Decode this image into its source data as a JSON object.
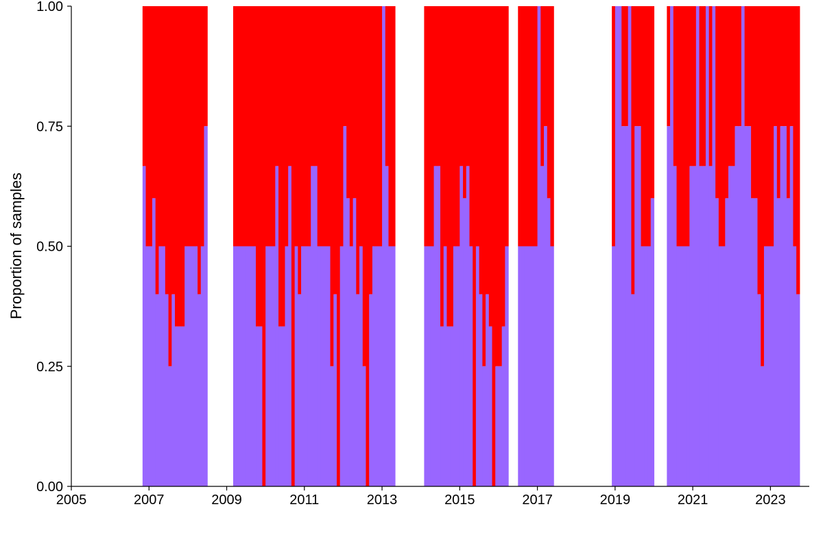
{
  "chart_data": {
    "type": "bar",
    "stacked": true,
    "title": "",
    "xlabel": "",
    "ylabel": "Proportion of samples",
    "xlim": [
      2005,
      2024
    ],
    "ylim": [
      0,
      1
    ],
    "xticks": [
      "2005",
      "2007",
      "2009",
      "2011",
      "2013",
      "2015",
      "2017",
      "2019",
      "2021",
      "2023"
    ],
    "yticks": [
      "0.00",
      "0.25",
      "0.50",
      "0.75",
      "1.00"
    ],
    "grid": false,
    "legend": "none",
    "x_step": 0.0833,
    "series": [
      {
        "color": "#9966FF",
        "layer": "bottom"
      },
      {
        "color": "#FF0000",
        "layer": "top"
      }
    ],
    "bars": [
      [
        2006.875,
        0.667
      ],
      [
        2006.958,
        0.5
      ],
      [
        2007.042,
        0.5
      ],
      [
        2007.125,
        0.6
      ],
      [
        2007.208,
        0.4
      ],
      [
        2007.292,
        0.5
      ],
      [
        2007.375,
        0.5
      ],
      [
        2007.458,
        0.4
      ],
      [
        2007.542,
        0.25
      ],
      [
        2007.625,
        0.4
      ],
      [
        2007.708,
        0.333
      ],
      [
        2007.792,
        0.333
      ],
      [
        2007.875,
        0.333
      ],
      [
        2007.958,
        0.5
      ],
      [
        2008.042,
        0.5
      ],
      [
        2008.125,
        0.5
      ],
      [
        2008.208,
        0.5
      ],
      [
        2008.292,
        0.4
      ],
      [
        2008.375,
        0.5
      ],
      [
        2008.458,
        0.75
      ],
      [
        2009.208,
        0.5
      ],
      [
        2009.292,
        0.5
      ],
      [
        2009.375,
        0.5
      ],
      [
        2009.458,
        0.5
      ],
      [
        2009.542,
        0.5
      ],
      [
        2009.625,
        0.5
      ],
      [
        2009.708,
        0.5
      ],
      [
        2009.792,
        0.333
      ],
      [
        2009.875,
        0.333
      ],
      [
        2009.958,
        0.0
      ],
      [
        2010.042,
        0.5
      ],
      [
        2010.125,
        0.5
      ],
      [
        2010.208,
        0.5
      ],
      [
        2010.292,
        0.667
      ],
      [
        2010.375,
        0.333
      ],
      [
        2010.458,
        0.333
      ],
      [
        2010.542,
        0.5
      ],
      [
        2010.625,
        0.667
      ],
      [
        2010.708,
        0.0
      ],
      [
        2010.792,
        0.5
      ],
      [
        2010.875,
        0.4
      ],
      [
        2010.958,
        0.5
      ],
      [
        2011.042,
        0.5
      ],
      [
        2011.125,
        0.5
      ],
      [
        2011.208,
        0.667
      ],
      [
        2011.292,
        0.667
      ],
      [
        2011.375,
        0.5
      ],
      [
        2011.458,
        0.5
      ],
      [
        2011.542,
        0.5
      ],
      [
        2011.625,
        0.5
      ],
      [
        2011.708,
        0.25
      ],
      [
        2011.792,
        0.4
      ],
      [
        2011.875,
        0.0
      ],
      [
        2011.958,
        0.5
      ],
      [
        2012.042,
        0.75
      ],
      [
        2012.125,
        0.6
      ],
      [
        2012.208,
        0.5
      ],
      [
        2012.292,
        0.6
      ],
      [
        2012.375,
        0.4
      ],
      [
        2012.458,
        0.5
      ],
      [
        2012.542,
        0.25
      ],
      [
        2012.625,
        0.0
      ],
      [
        2012.708,
        0.4
      ],
      [
        2012.792,
        0.5
      ],
      [
        2012.875,
        0.5
      ],
      [
        2012.958,
        0.5
      ],
      [
        2013.042,
        1.0
      ],
      [
        2013.125,
        0.667
      ],
      [
        2013.208,
        0.5
      ],
      [
        2013.292,
        0.5
      ],
      [
        2014.125,
        0.5
      ],
      [
        2014.208,
        0.5
      ],
      [
        2014.292,
        0.5
      ],
      [
        2014.375,
        0.667
      ],
      [
        2014.458,
        0.667
      ],
      [
        2014.542,
        0.333
      ],
      [
        2014.625,
        0.5
      ],
      [
        2014.708,
        0.333
      ],
      [
        2014.792,
        0.333
      ],
      [
        2014.875,
        0.5
      ],
      [
        2014.958,
        0.5
      ],
      [
        2015.042,
        0.667
      ],
      [
        2015.125,
        0.6
      ],
      [
        2015.208,
        0.667
      ],
      [
        2015.292,
        0.5
      ],
      [
        2015.375,
        0.0
      ],
      [
        2015.458,
        0.5
      ],
      [
        2015.542,
        0.4
      ],
      [
        2015.625,
        0.25
      ],
      [
        2015.708,
        0.4
      ],
      [
        2015.792,
        0.333
      ],
      [
        2015.875,
        0.0
      ],
      [
        2015.958,
        0.25
      ],
      [
        2016.042,
        0.25
      ],
      [
        2016.125,
        0.333
      ],
      [
        2016.208,
        0.5
      ],
      [
        2016.542,
        0.5
      ],
      [
        2016.625,
        0.5
      ],
      [
        2016.708,
        0.5
      ],
      [
        2016.792,
        0.5
      ],
      [
        2016.875,
        0.5
      ],
      [
        2016.958,
        0.5
      ],
      [
        2017.042,
        1.0
      ],
      [
        2017.125,
        0.667
      ],
      [
        2017.208,
        0.75
      ],
      [
        2017.292,
        0.6
      ],
      [
        2017.375,
        0.5
      ],
      [
        2018.958,
        0.5
      ],
      [
        2019.042,
        1.0
      ],
      [
        2019.125,
        1.0
      ],
      [
        2019.208,
        0.75
      ],
      [
        2019.292,
        0.75
      ],
      [
        2019.375,
        1.0
      ],
      [
        2019.458,
        0.4
      ],
      [
        2019.542,
        0.75
      ],
      [
        2019.625,
        0.75
      ],
      [
        2019.708,
        0.5
      ],
      [
        2019.792,
        0.5
      ],
      [
        2019.875,
        0.5
      ],
      [
        2019.958,
        0.6
      ],
      [
        2020.375,
        0.75
      ],
      [
        2020.458,
        1.0
      ],
      [
        2020.542,
        0.667
      ],
      [
        2020.625,
        0.5
      ],
      [
        2020.708,
        0.5
      ],
      [
        2020.792,
        0.5
      ],
      [
        2020.875,
        0.5
      ],
      [
        2020.958,
        0.667
      ],
      [
        2021.042,
        0.667
      ],
      [
        2021.125,
        1.0
      ],
      [
        2021.208,
        0.667
      ],
      [
        2021.292,
        0.667
      ],
      [
        2021.375,
        1.0
      ],
      [
        2021.458,
        0.667
      ],
      [
        2021.542,
        1.0
      ],
      [
        2021.625,
        0.6
      ],
      [
        2021.708,
        0.5
      ],
      [
        2021.792,
        0.5
      ],
      [
        2021.875,
        0.6
      ],
      [
        2021.958,
        0.667
      ],
      [
        2022.042,
        0.667
      ],
      [
        2022.125,
        0.75
      ],
      [
        2022.208,
        0.75
      ],
      [
        2022.292,
        1.0
      ],
      [
        2022.375,
        0.75
      ],
      [
        2022.458,
        0.75
      ],
      [
        2022.542,
        0.6
      ],
      [
        2022.625,
        0.6
      ],
      [
        2022.708,
        0.4
      ],
      [
        2022.792,
        0.25
      ],
      [
        2022.875,
        0.5
      ],
      [
        2022.958,
        0.5
      ],
      [
        2023.042,
        0.5
      ],
      [
        2023.125,
        0.75
      ],
      [
        2023.208,
        0.6
      ],
      [
        2023.292,
        0.75
      ],
      [
        2023.375,
        0.75
      ],
      [
        2023.458,
        0.6
      ],
      [
        2023.542,
        0.75
      ],
      [
        2023.625,
        0.5
      ],
      [
        2023.708,
        0.4
      ]
    ]
  }
}
